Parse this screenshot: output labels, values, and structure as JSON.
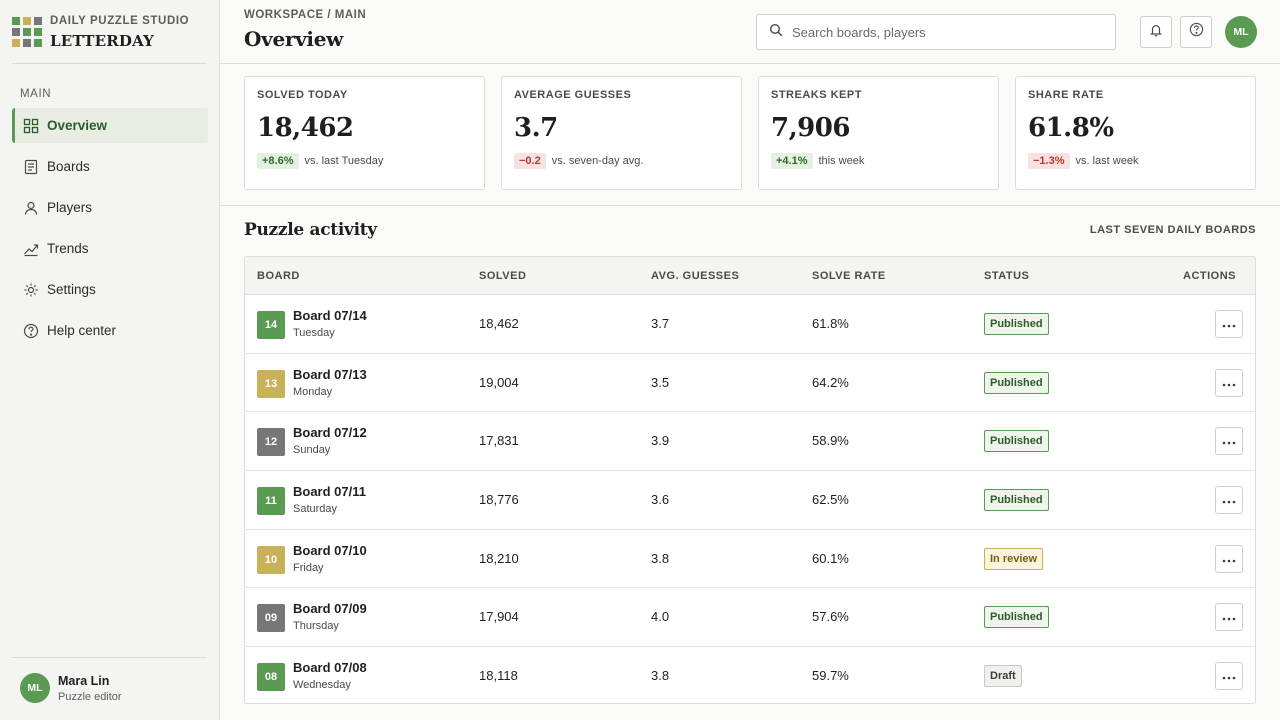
{
  "brand": {
    "eyebrow": "DAILY PUZZLE STUDIO",
    "name": "LETTERDAY"
  },
  "sidebar": {
    "section": "MAIN",
    "items": [
      {
        "label": "Overview",
        "icon": "grid-icon",
        "active": true
      },
      {
        "label": "Boards",
        "icon": "document-icon"
      },
      {
        "label": "Players",
        "icon": "user-icon"
      },
      {
        "label": "Trends",
        "icon": "trend-icon"
      },
      {
        "label": "Settings",
        "icon": "gear-icon"
      },
      {
        "label": "Help center",
        "icon": "help-icon"
      }
    ],
    "user": {
      "initials": "ML",
      "name": "Mara Lin",
      "role": "Puzzle editor"
    }
  },
  "header": {
    "breadcrumb": "WORKSPACE / MAIN",
    "title": "Overview",
    "search_placeholder": "Search boards, players",
    "avatar_initials": "ML"
  },
  "stats": [
    {
      "label": "SOLVED TODAY",
      "value": "18,462",
      "delta": "+8.6%",
      "trend": "up",
      "note": "vs. last Tuesday"
    },
    {
      "label": "AVERAGE GUESSES",
      "value": "3.7",
      "delta": "−0.2",
      "trend": "down",
      "note": "vs. seven-day avg."
    },
    {
      "label": "STREAKS KEPT",
      "value": "7,906",
      "delta": "+4.1%",
      "trend": "up",
      "note": "this week"
    },
    {
      "label": "SHARE RATE",
      "value": "61.8%",
      "delta": "−1.3%",
      "trend": "down",
      "note": "vs. last week"
    }
  ],
  "activity": {
    "title": "Puzzle activity",
    "meta": "LAST SEVEN DAILY BOARDS",
    "columns": [
      "BOARD",
      "SOLVED",
      "AVG. GUESSES",
      "SOLVE RATE",
      "STATUS",
      "ACTIONS"
    ],
    "rows": [
      {
        "tile": "14",
        "color": "#5a9a52",
        "name": "Board 07/14",
        "day": "Tuesday",
        "solved": "18,462",
        "guesses": "3.7",
        "rate": "61.8%",
        "status": "Published",
        "kind": "published"
      },
      {
        "tile": "13",
        "color": "#c9b15a",
        "name": "Board 07/13",
        "day": "Monday",
        "solved": "19,004",
        "guesses": "3.5",
        "rate": "64.2%",
        "status": "Published",
        "kind": "published"
      },
      {
        "tile": "12",
        "color": "#77777a",
        "name": "Board 07/12",
        "day": "Sunday",
        "solved": "17,831",
        "guesses": "3.9",
        "rate": "58.9%",
        "status": "Published",
        "kind": "published"
      },
      {
        "tile": "11",
        "color": "#5a9a52",
        "name": "Board 07/11",
        "day": "Saturday",
        "solved": "18,776",
        "guesses": "3.6",
        "rate": "62.5%",
        "status": "Published",
        "kind": "published"
      },
      {
        "tile": "10",
        "color": "#c9b15a",
        "name": "Board 07/10",
        "day": "Friday",
        "solved": "18,210",
        "guesses": "3.8",
        "rate": "60.1%",
        "status": "In review",
        "kind": "review"
      },
      {
        "tile": "09",
        "color": "#77777a",
        "name": "Board 07/09",
        "day": "Thursday",
        "solved": "17,904",
        "guesses": "4.0",
        "rate": "57.6%",
        "status": "Published",
        "kind": "published"
      },
      {
        "tile": "08",
        "color": "#5a9a52",
        "name": "Board 07/08",
        "day": "Wednesday",
        "solved": "18,118",
        "guesses": "3.8",
        "rate": "59.7%",
        "status": "Draft",
        "kind": "draft"
      }
    ]
  },
  "colors": {
    "accent": "#5a9a52",
    "gold": "#c9b15a",
    "gray": "#77777a",
    "up": "#2f6a2c",
    "down": "#b33a31"
  }
}
